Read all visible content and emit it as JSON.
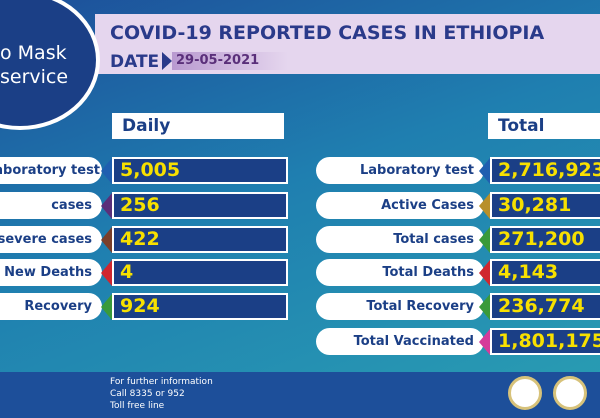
{
  "banner": {
    "circle_lines": [
      "o Mask",
      "service"
    ],
    "title": "COVID-19 REPORTED CASES IN ETHIOPIA",
    "date_label": "DATE",
    "date": "29-05-2021"
  },
  "daily": {
    "header": "Daily",
    "rows": [
      {
        "label": "Laboratory test",
        "value": "5,005",
        "color": "#1f5fb0"
      },
      {
        "label": "cases",
        "value": "256",
        "color": "#5a2f7a"
      },
      {
        "label": "severe cases",
        "value": "422",
        "color": "#7a3f2a"
      },
      {
        "label": "New Deaths",
        "value": "4",
        "color": "#d0272f"
      },
      {
        "label": "Recovery",
        "value": "924",
        "color": "#3a9a3a"
      }
    ]
  },
  "total": {
    "header": "Total",
    "rows": [
      {
        "label": "Laboratory test",
        "value": "2,716,923",
        "color": "#1f5fb0"
      },
      {
        "label": "Active Cases",
        "value": "30,281",
        "color": "#b8902a"
      },
      {
        "label": "Total cases",
        "value": "271,200",
        "color": "#3a9a3a"
      },
      {
        "label": "Total Deaths",
        "value": "4,143",
        "color": "#d0272f"
      },
      {
        "label": "Total Recovery",
        "value": "236,774",
        "color": "#3a9a3a"
      },
      {
        "label": "Total Vaccinated",
        "value": "1,801,175",
        "color": "#d63a9a"
      }
    ]
  },
  "footer": {
    "lines": [
      "For further information",
      "Call 8335 or 952",
      "Toll free line"
    ]
  }
}
